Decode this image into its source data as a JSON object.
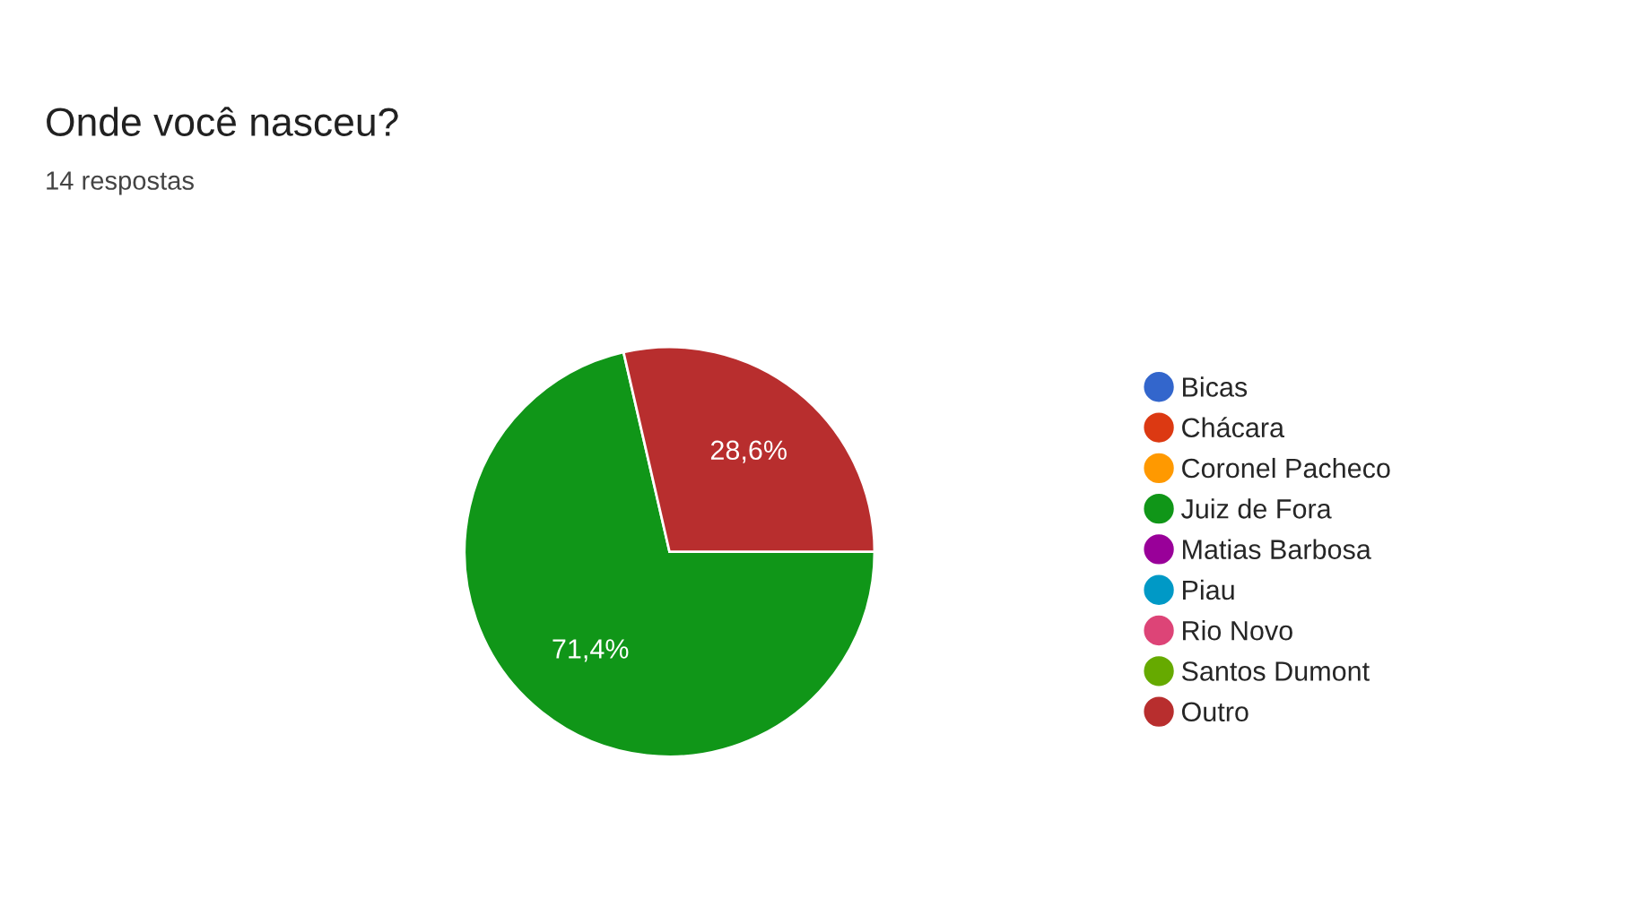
{
  "chart_data": {
    "type": "pie",
    "title": "Onde você nasceu?",
    "subtitle": "14 respostas",
    "categories": [
      "Bicas",
      "Chácara",
      "Coronel Pacheco",
      "Juiz de Fora",
      "Matias Barbosa",
      "Piau",
      "Rio Novo",
      "Santos Dumont",
      "Outro"
    ],
    "values": [
      0,
      0,
      0,
      71.4,
      0,
      0,
      0,
      0,
      28.6
    ],
    "value_labels": [
      null,
      null,
      null,
      "71,4%",
      null,
      null,
      null,
      null,
      "28,6%"
    ],
    "colors": [
      "#3366cc",
      "#dc3912",
      "#ff9900",
      "#109618",
      "#990099",
      "#0099c6",
      "#dd4477",
      "#66aa00",
      "#b82e2e"
    ],
    "legend": "right"
  }
}
